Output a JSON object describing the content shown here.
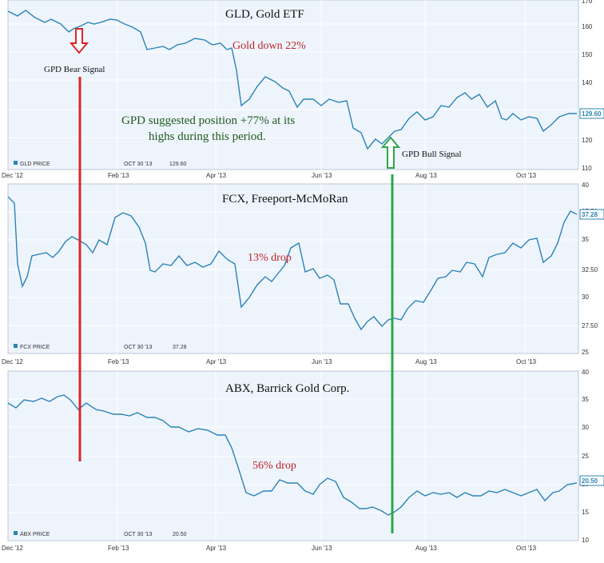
{
  "colors": {
    "line": "#2b83b6",
    "panel_bg": "#eef4fc",
    "grid": "#ffffff",
    "bear": "#d9262a",
    "bull": "#2aa84a"
  },
  "chart_data": [
    {
      "type": "line",
      "title": "GLD, Gold ETF",
      "xticks": [
        "Dec '12",
        "Feb '13",
        "Apr '13",
        "Jun '13",
        "Aug '13",
        "Oct '13"
      ],
      "yticks": [
        "110",
        "120",
        "130",
        "140",
        "150",
        "160",
        "170"
      ],
      "ylim": [
        110,
        170
      ],
      "legend": {
        "name": "GLD PRICE",
        "date": "OCT 30 '13",
        "value": "129.60"
      },
      "last_value": "129.60",
      "annotations": {
        "drop": "Gold down 22%",
        "position_line1": "GPD suggested position +77% at its",
        "position_line2": "highs during this period.",
        "bull": "GPD Bull Signal"
      },
      "series": [
        {
          "x": [
            0,
            0.5,
            1,
            1.5,
            2,
            2.5,
            3,
            3.5,
            4,
            4.5,
            5,
            5.5,
            6,
            6.5,
            7,
            7.5,
            8,
            8.5,
            9,
            9.5,
            10,
            10.5,
            11
          ],
          "y": [
            166.5,
            165,
            163.5,
            164,
            162.5,
            163.5,
            161,
            162,
            160,
            159,
            157,
            155,
            153,
            151,
            147,
            148,
            137,
            136,
            132,
            130,
            131.5,
            131,
            128.5
          ]
        }
      ]
    },
    {
      "type": "line",
      "title": "FCX, Freeport-McMoRan",
      "xticks": [
        "Dec '12",
        "Feb '13",
        "Apr '13",
        "Jun '13",
        "Aug '13",
        "Oct '13"
      ],
      "yticks": [
        "25",
        "27.50",
        "30",
        "32.50",
        "35",
        "37.50",
        "40"
      ],
      "ylim": [
        25,
        40
      ],
      "legend": {
        "name": "FCX PRICE",
        "date": "OCT 30 '13",
        "value": "37.28"
      },
      "last_value": "37.28",
      "annotations": {
        "drop": "13% drop"
      }
    },
    {
      "type": "line",
      "title": "ABX, Barrick Gold Corp.",
      "xticks": [
        "Dec '12",
        "Feb '13",
        "Apr '13",
        "Jun '13",
        "Aug '13",
        "Oct '13"
      ],
      "yticks": [
        "10",
        "15",
        "20",
        "25",
        "30",
        "35",
        "40"
      ],
      "ylim": [
        10,
        40
      ],
      "legend": {
        "name": "ABX PRICE",
        "date": "OCT 30 '13",
        "value": "20.50"
      },
      "last_value": "20.50",
      "annotations": {
        "drop": "56% drop"
      }
    }
  ],
  "signals": {
    "bear": "GPD Bear Signal"
  }
}
